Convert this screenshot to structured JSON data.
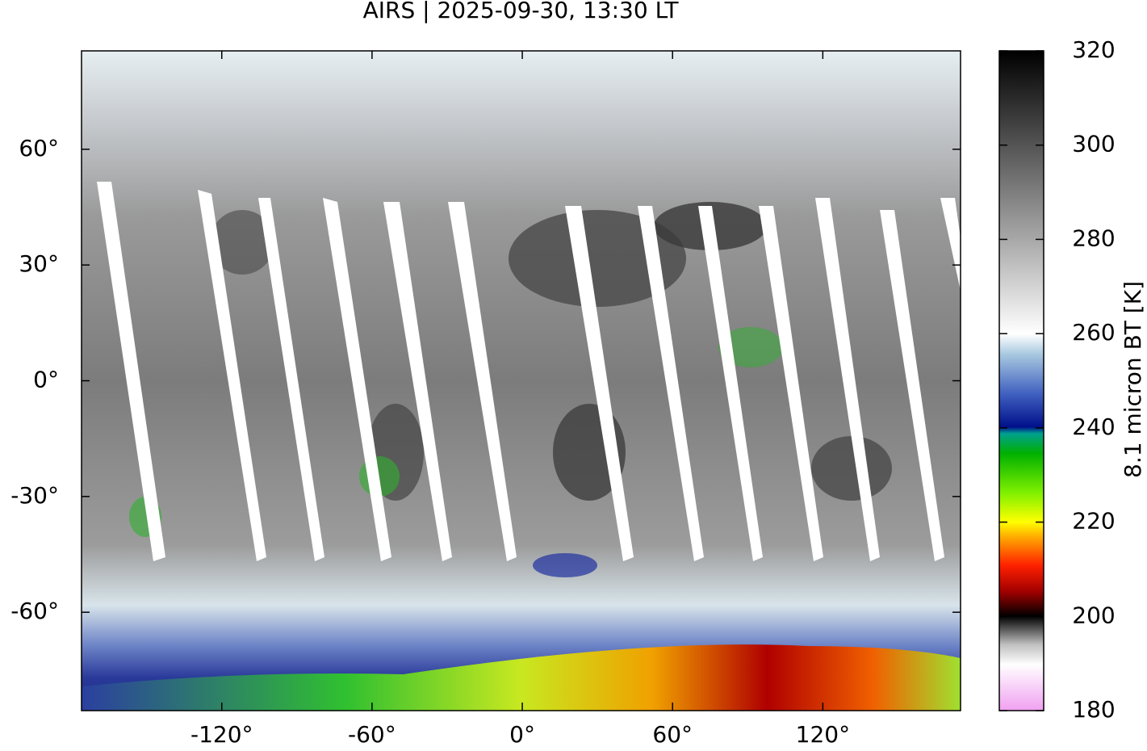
{
  "chart_data": {
    "type": "map",
    "title": "AIRS | 2025-09-30, 13:30 LT",
    "xlim": [
      -176,
      175
    ],
    "ylim": [
      -85.5,
      85.5
    ],
    "xticks": [
      {
        "value": -120,
        "label": "-120°"
      },
      {
        "value": -60,
        "label": "-60°"
      },
      {
        "value": 0,
        "label": "0°"
      },
      {
        "value": 60,
        "label": "60°"
      },
      {
        "value": 120,
        "label": "120°"
      }
    ],
    "yticks": [
      {
        "value": 60,
        "label": "60°"
      },
      {
        "value": 30,
        "label": "30°"
      },
      {
        "value": 0,
        "label": "0°"
      },
      {
        "value": -30,
        "label": "-30°"
      },
      {
        "value": -60,
        "label": "-60°"
      }
    ],
    "colorbar": {
      "label": "8.1 micron BT [K]",
      "lim": [
        180,
        320
      ],
      "ticks": [
        180,
        200,
        220,
        240,
        260,
        280,
        300,
        320
      ]
    }
  }
}
